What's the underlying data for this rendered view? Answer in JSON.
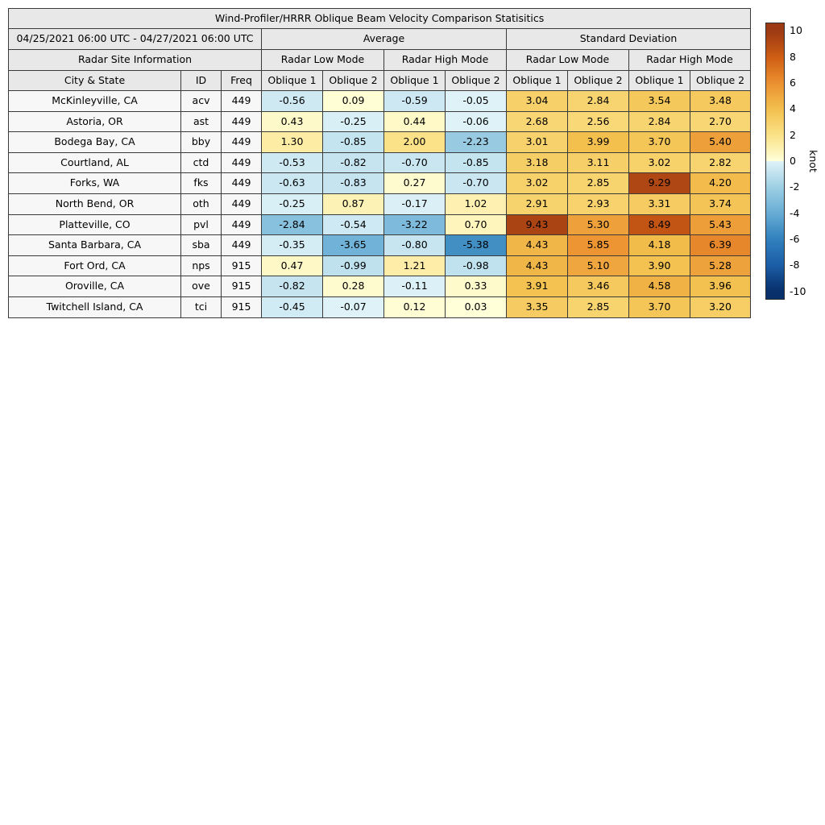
{
  "chart_data": {
    "type": "heatmap",
    "title": "Wind-Profiler/HRRR Oblique Beam Velocity Comparison Statisitics",
    "date_range": "04/25/2021 06:00 UTC - 04/27/2021 06:00 UTC",
    "group_headers": {
      "average": "Average",
      "std": "Standard Deviation"
    },
    "site_info_header": "Radar Site Information",
    "mode_headers": {
      "low": "Radar Low Mode",
      "high": "Radar High Mode"
    },
    "column_headers": {
      "city": "City & State",
      "id": "ID",
      "freq": "Freq",
      "oblique1": "Oblique 1",
      "oblique2": "Oblique 2"
    },
    "value_columns": [
      "avg_low_oblique1",
      "avg_low_oblique2",
      "avg_high_oblique1",
      "avg_high_oblique2",
      "std_low_oblique1",
      "std_low_oblique2",
      "std_high_oblique1",
      "std_high_oblique2"
    ],
    "rows": [
      {
        "city": "McKinleyville, CA",
        "id": "acv",
        "freq": "449",
        "values": [
          "-0.56",
          "0.09",
          "-0.59",
          "-0.05",
          "3.04",
          "2.84",
          "3.54",
          "3.48"
        ]
      },
      {
        "city": "Astoria, OR",
        "id": "ast",
        "freq": "449",
        "values": [
          "0.43",
          "-0.25",
          "0.44",
          "-0.06",
          "2.68",
          "2.56",
          "2.84",
          "2.70"
        ]
      },
      {
        "city": "Bodega Bay, CA",
        "id": "bby",
        "freq": "449",
        "values": [
          "1.30",
          "-0.85",
          "2.00",
          "-2.23",
          "3.01",
          "3.99",
          "3.70",
          "5.40"
        ]
      },
      {
        "city": "Courtland, AL",
        "id": "ctd",
        "freq": "449",
        "values": [
          "-0.53",
          "-0.82",
          "-0.70",
          "-0.85",
          "3.18",
          "3.11",
          "3.02",
          "2.82"
        ]
      },
      {
        "city": "Forks, WA",
        "id": "fks",
        "freq": "449",
        "values": [
          "-0.63",
          "-0.83",
          "0.27",
          "-0.70",
          "3.02",
          "2.85",
          "9.29",
          "4.20"
        ]
      },
      {
        "city": "North Bend, OR",
        "id": "oth",
        "freq": "449",
        "values": [
          "-0.25",
          "0.87",
          "-0.17",
          "1.02",
          "2.91",
          "2.93",
          "3.31",
          "3.74"
        ]
      },
      {
        "city": "Platteville, CO",
        "id": "pvl",
        "freq": "449",
        "values": [
          "-2.84",
          "-0.54",
          "-3.22",
          "0.70",
          "9.43",
          "5.30",
          "8.49",
          "5.43"
        ]
      },
      {
        "city": "Santa Barbara, CA",
        "id": "sba",
        "freq": "449",
        "values": [
          "-0.35",
          "-3.65",
          "-0.80",
          "-5.38",
          "4.43",
          "5.85",
          "4.18",
          "6.39"
        ]
      },
      {
        "city": "Fort Ord, CA",
        "id": "nps",
        "freq": "915",
        "values": [
          "0.47",
          "-0.99",
          "1.21",
          "-0.98",
          "4.43",
          "5.10",
          "3.90",
          "5.28"
        ]
      },
      {
        "city": "Oroville, CA",
        "id": "ove",
        "freq": "915",
        "values": [
          "-0.82",
          "0.28",
          "-0.11",
          "0.33",
          "3.91",
          "3.46",
          "4.58",
          "3.96"
        ]
      },
      {
        "city": "Twitchell Island, CA",
        "id": "tci",
        "freq": "915",
        "values": [
          "-0.45",
          "-0.07",
          "0.12",
          "0.03",
          "3.35",
          "2.85",
          "3.70",
          "3.20"
        ]
      }
    ],
    "colorbar": {
      "label": "knot",
      "ticks": [
        10,
        8,
        6,
        4,
        2,
        0,
        -2,
        -4,
        -6,
        -8,
        -10
      ],
      "vmin": -10,
      "vmax": 10
    },
    "legend_position": "right",
    "units": "knot"
  },
  "colormap": {
    "negative_stops": [
      [
        -10,
        "#08306b"
      ],
      [
        -8,
        "#1c5fa8"
      ],
      [
        -6,
        "#3181bd"
      ],
      [
        -4,
        "#68add5"
      ],
      [
        -2,
        "#9ecfe4"
      ],
      [
        0,
        "#e0f3f8"
      ]
    ],
    "positive_stops": [
      [
        0,
        "#ffffd9"
      ],
      [
        2,
        "#fbe288"
      ],
      [
        4,
        "#f3c04e"
      ],
      [
        6,
        "#eb9130"
      ],
      [
        8,
        "#d05e14"
      ],
      [
        10,
        "#9c3a13"
      ]
    ]
  },
  "style_colors": {
    "header_bg": "#e8e8e8",
    "label_cell_bg": "#f7f7f7",
    "grid_line": "#3a3a3a"
  }
}
